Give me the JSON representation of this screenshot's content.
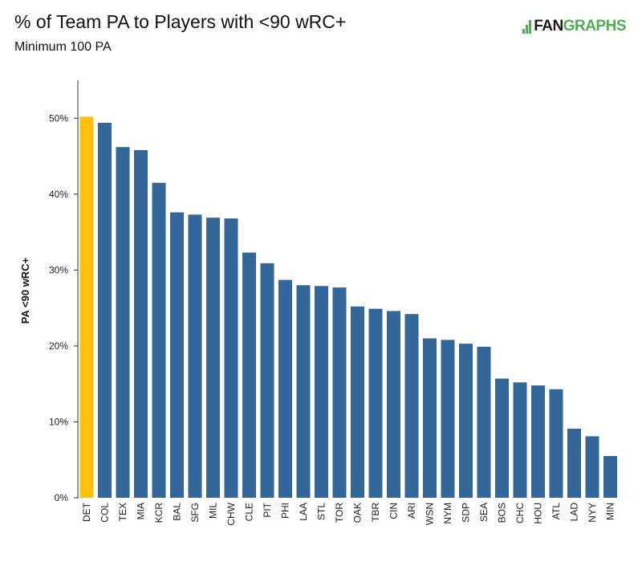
{
  "header": {
    "title": "% of Team PA to Players with <90 wRC+",
    "subtitle": "Minimum 100 PA",
    "logo_fan": "FAN",
    "logo_graphs": "GRAPHS"
  },
  "colors": {
    "default_bar": "#336699",
    "highlight_bar": "#ffc107",
    "brand_green": "#4caf50"
  },
  "chart_data": {
    "type": "bar",
    "title": "% of Team PA to Players with <90 wRC+",
    "subtitle": "Minimum 100 PA",
    "ylabel": "PA <90 wRC+",
    "xlabel": "",
    "ylim": [
      0,
      55
    ],
    "yticks": [
      0,
      10,
      20,
      30,
      40,
      50
    ],
    "ytick_labels": [
      "0%",
      "10%",
      "20%",
      "30%",
      "40%",
      "50%"
    ],
    "grid": false,
    "highlight": "DET",
    "categories": [
      "DET",
      "COL",
      "TEX",
      "MIA",
      "KCR",
      "BAL",
      "SFG",
      "MIL",
      "CHW",
      "CLE",
      "PIT",
      "PHI",
      "LAA",
      "STL",
      "TOR",
      "OAK",
      "TBR",
      "CIN",
      "ARI",
      "WSN",
      "NYM",
      "SDP",
      "SEA",
      "BOS",
      "CHC",
      "HOU",
      "ATL",
      "LAD",
      "NYY",
      "MIN"
    ],
    "values": [
      50.2,
      49.4,
      46.2,
      45.8,
      41.5,
      37.6,
      37.3,
      36.9,
      36.8,
      32.3,
      30.9,
      28.7,
      28.0,
      27.9,
      27.7,
      25.2,
      24.9,
      24.6,
      24.2,
      21.0,
      20.8,
      20.3,
      19.9,
      15.7,
      15.2,
      14.8,
      14.3,
      9.1,
      8.1,
      5.5
    ]
  }
}
